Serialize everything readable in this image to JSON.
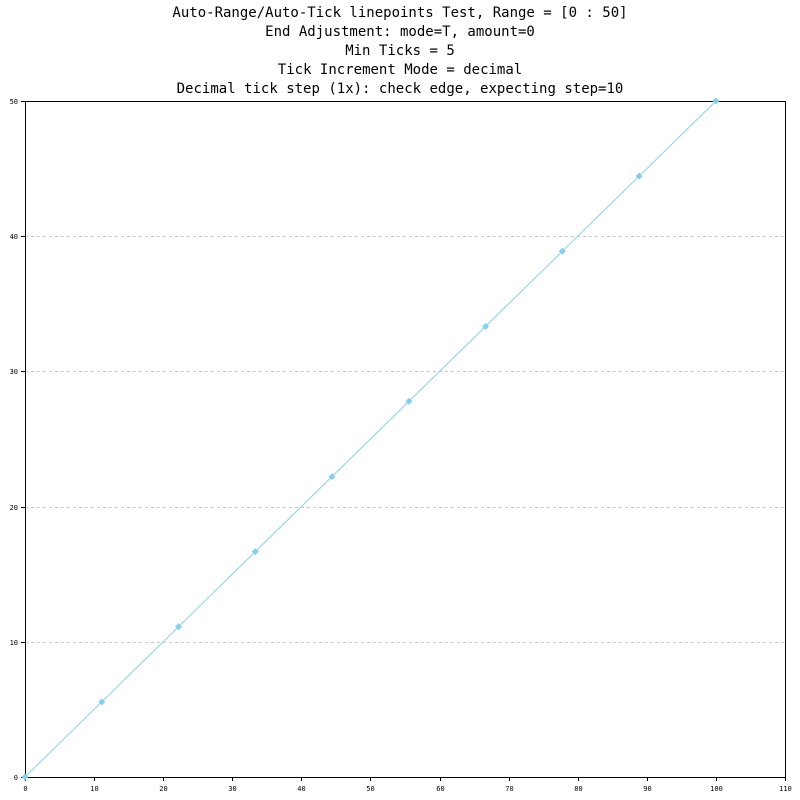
{
  "colors": {
    "series": "#87ceeb",
    "grid": "#c8c8c8",
    "axis": "#000000",
    "background": "#ffffff"
  },
  "chart_data": {
    "type": "line",
    "title_lines": [
      "Auto-Range/Auto-Tick linepoints Test, Range = [0 : 50]",
      "End Adjustment: mode=T, amount=0",
      "Min Ticks = 5",
      "Tick Increment Mode = decimal",
      "Decimal tick step (1x): check edge, expecting step=10"
    ],
    "xlabel": "",
    "ylabel": "",
    "xlim": [
      0,
      110
    ],
    "ylim": [
      0,
      50
    ],
    "x_ticks": [
      0,
      10,
      20,
      30,
      40,
      50,
      60,
      70,
      80,
      90,
      100,
      110
    ],
    "y_ticks": [
      0,
      10,
      20,
      30,
      40,
      50
    ],
    "grid": {
      "horizontal": true,
      "vertical": false,
      "style": "dashed"
    },
    "legend": "none",
    "series": [
      {
        "marker": "diamond",
        "x": [
          0,
          11.11,
          22.22,
          33.33,
          44.44,
          55.56,
          66.67,
          77.78,
          88.89,
          100
        ],
        "y": [
          0,
          5.56,
          11.11,
          16.67,
          22.22,
          27.78,
          33.33,
          38.89,
          44.44,
          50
        ]
      }
    ]
  }
}
